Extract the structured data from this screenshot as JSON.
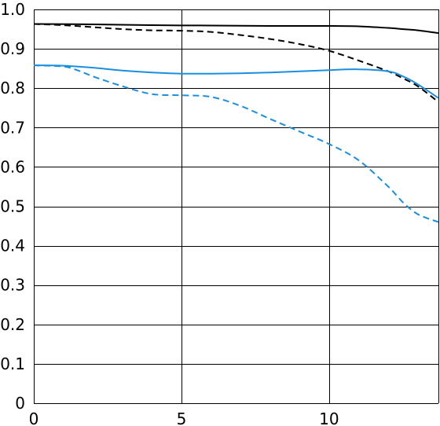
{
  "chart_data": {
    "type": "line",
    "title": "",
    "xlabel": "",
    "ylabel": "",
    "xlim": [
      0,
      13.7
    ],
    "ylim": [
      0,
      1.0
    ],
    "grid": true,
    "x_ticks": [
      0,
      5,
      10
    ],
    "y_ticks": [
      0,
      0.1,
      0.2,
      0.3,
      0.4,
      0.5,
      0.6,
      0.7,
      0.8,
      0.9,
      1.0
    ],
    "x_tick_labels": [
      "0",
      "5",
      "10"
    ],
    "y_tick_labels": [
      "0",
      "0.1",
      "0.2",
      "0.3",
      "0.4",
      "0.5",
      "0.6",
      "0.7",
      "0.8",
      "0.9",
      "1.0"
    ],
    "series": [
      {
        "color": "#000000",
        "style": "solid",
        "points": [
          [
            0,
            0.963
          ],
          [
            2,
            0.962
          ],
          [
            4,
            0.96
          ],
          [
            6,
            0.959
          ],
          [
            8,
            0.958
          ],
          [
            10,
            0.958
          ],
          [
            11,
            0.957
          ],
          [
            12,
            0.953
          ],
          [
            12.5,
            0.95
          ],
          [
            13,
            0.947
          ],
          [
            13.7,
            0.94
          ]
        ]
      },
      {
        "color": "#000000",
        "style": "dashed",
        "points": [
          [
            0,
            0.963
          ],
          [
            1,
            0.96
          ],
          [
            2,
            0.955
          ],
          [
            3,
            0.95
          ],
          [
            4,
            0.947
          ],
          [
            5,
            0.946
          ],
          [
            6,
            0.943
          ],
          [
            7,
            0.935
          ],
          [
            8,
            0.925
          ],
          [
            9,
            0.912
          ],
          [
            10,
            0.895
          ],
          [
            11,
            0.87
          ],
          [
            12,
            0.843
          ],
          [
            12.5,
            0.825
          ],
          [
            13,
            0.805
          ],
          [
            13.7,
            0.765
          ]
        ]
      },
      {
        "color": "#1a8fe0",
        "style": "solid",
        "points": [
          [
            0,
            0.858
          ],
          [
            1,
            0.857
          ],
          [
            2,
            0.852
          ],
          [
            3,
            0.845
          ],
          [
            4,
            0.84
          ],
          [
            5,
            0.837
          ],
          [
            6,
            0.837
          ],
          [
            7,
            0.838
          ],
          [
            8,
            0.84
          ],
          [
            9,
            0.843
          ],
          [
            10,
            0.846
          ],
          [
            11,
            0.848
          ],
          [
            12,
            0.843
          ],
          [
            12.5,
            0.83
          ],
          [
            13,
            0.81
          ],
          [
            13.7,
            0.775
          ]
        ]
      },
      {
        "color": "#1a8fe0",
        "style": "dashed",
        "points": [
          [
            0,
            0.858
          ],
          [
            1,
            0.855
          ],
          [
            1.5,
            0.845
          ],
          [
            2,
            0.83
          ],
          [
            3,
            0.805
          ],
          [
            4,
            0.785
          ],
          [
            5,
            0.782
          ],
          [
            6,
            0.778
          ],
          [
            7,
            0.755
          ],
          [
            8,
            0.722
          ],
          [
            9,
            0.69
          ],
          [
            10,
            0.658
          ],
          [
            11,
            0.617
          ],
          [
            12,
            0.55
          ],
          [
            12.5,
            0.51
          ],
          [
            13,
            0.48
          ],
          [
            13.7,
            0.46
          ]
        ]
      }
    ]
  }
}
